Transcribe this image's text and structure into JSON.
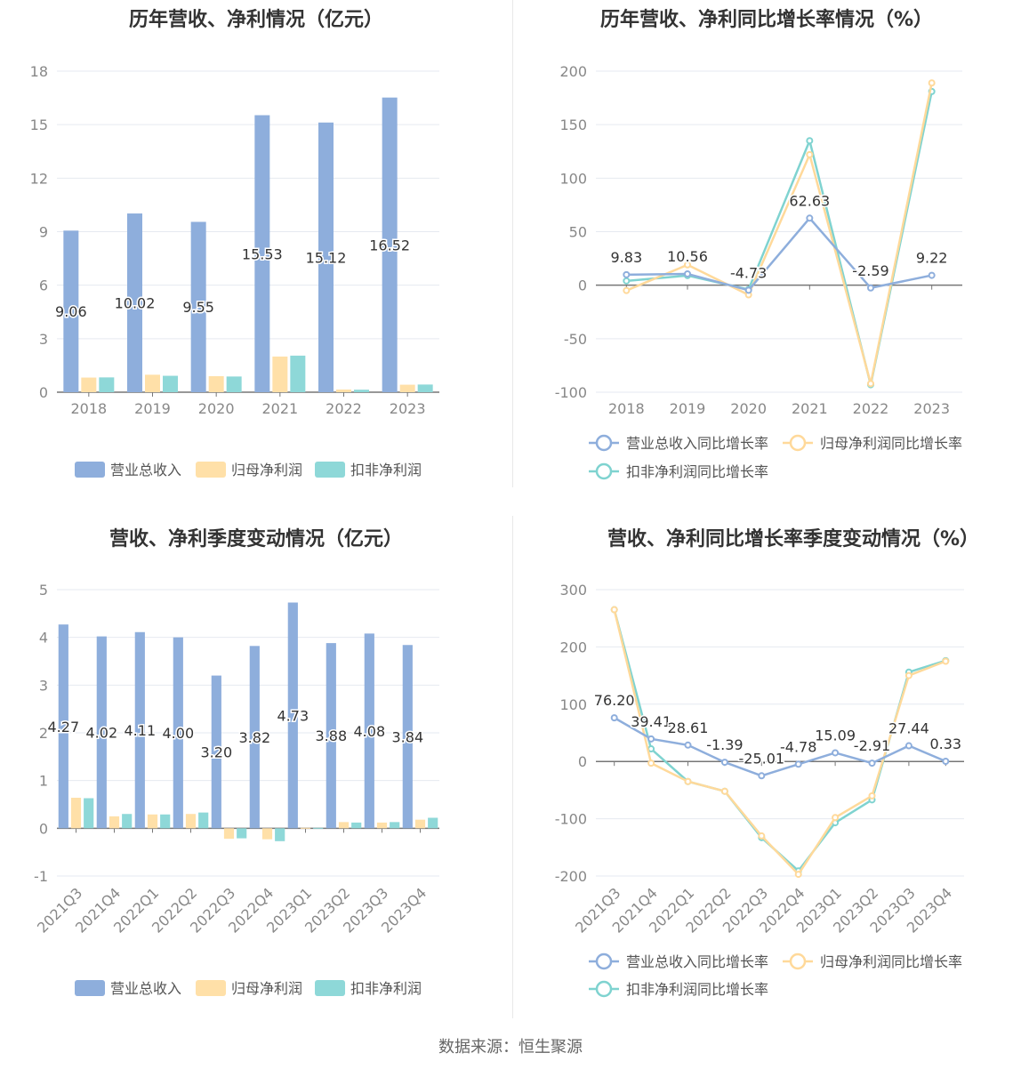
{
  "source_text": "数据来源：恒生聚源",
  "colors": {
    "revenue": "#8eaedc",
    "net_profit": "#ffe0a8",
    "deducted_profit": "#8ed8d8",
    "revenue_line": "#8eaedc",
    "net_profit_line": "#ffd99a",
    "deducted_line": "#7fd3d0"
  },
  "chart_data": [
    {
      "id": "annual_amounts",
      "type": "bar",
      "title": "历年营收、净利情况（亿元）",
      "categories": [
        "2018",
        "2019",
        "2020",
        "2021",
        "2022",
        "2023"
      ],
      "ylim": [
        0,
        18
      ],
      "yticks": [
        0,
        3,
        6,
        9,
        12,
        15,
        18
      ],
      "grid": true,
      "legend_position": "bottom",
      "series": [
        {
          "name": "营业总收入",
          "values": [
            9.06,
            10.02,
            9.55,
            15.53,
            15.12,
            16.52
          ],
          "labels": [
            "9.06",
            "10.02",
            "9.55",
            "15.53",
            "15.12",
            "16.52"
          ]
        },
        {
          "name": "归母净利润",
          "values": [
            0.82,
            0.98,
            0.9,
            2.0,
            0.15,
            0.42
          ]
        },
        {
          "name": "扣非净利润",
          "values": [
            0.83,
            0.92,
            0.88,
            2.05,
            0.14,
            0.43
          ]
        }
      ]
    },
    {
      "id": "annual_growth",
      "type": "line",
      "title": "历年营收、净利同比增长率情况（%）",
      "categories": [
        "2018",
        "2019",
        "2020",
        "2021",
        "2022",
        "2023"
      ],
      "ylim": [
        -100,
        200
      ],
      "yticks": [
        -100,
        -50,
        0,
        50,
        100,
        150,
        200
      ],
      "grid": true,
      "legend_position": "bottom",
      "series": [
        {
          "name": "营业总收入同比增长率",
          "values": [
            9.83,
            10.56,
            -4.73,
            62.63,
            -2.59,
            9.22
          ],
          "labels": [
            "9.83",
            "10.56",
            "-4.73",
            "62.63",
            "-2.59",
            "9.22"
          ]
        },
        {
          "name": "归母净利润同比增长率",
          "values": [
            -5,
            19,
            -9,
            122,
            -92,
            189
          ]
        },
        {
          "name": "扣非净利润同比增长率",
          "values": [
            4,
            9,
            -4,
            135,
            -93,
            181
          ]
        }
      ]
    },
    {
      "id": "quarterly_amounts",
      "type": "bar",
      "title": "营收、净利季度变动情况（亿元）",
      "categories": [
        "2021Q3",
        "2021Q4",
        "2022Q1",
        "2022Q2",
        "2022Q3",
        "2022Q4",
        "2023Q1",
        "2023Q2",
        "2023Q3",
        "2023Q4"
      ],
      "ylim": [
        -1,
        5
      ],
      "yticks": [
        -1,
        0,
        1,
        2,
        3,
        4,
        5
      ],
      "grid": true,
      "legend_position": "bottom",
      "series": [
        {
          "name": "营业总收入",
          "values": [
            4.27,
            4.02,
            4.11,
            4.0,
            3.2,
            3.82,
            4.73,
            3.88,
            4.08,
            3.84
          ],
          "labels": [
            "4.27",
            "4.02",
            "4.11",
            "4.00",
            "3.20",
            "3.82",
            "4.73",
            "3.88",
            "4.08",
            "3.84"
          ]
        },
        {
          "name": "归母净利润",
          "values": [
            0.64,
            0.25,
            0.29,
            0.3,
            -0.22,
            -0.23,
            0.01,
            0.13,
            0.12,
            0.18
          ]
        },
        {
          "name": "扣非净利润",
          "values": [
            0.63,
            0.3,
            0.29,
            0.33,
            -0.21,
            -0.27,
            0.01,
            0.12,
            0.13,
            0.22
          ]
        }
      ]
    },
    {
      "id": "quarterly_growth",
      "type": "line",
      "title": "营收、净利同比增长率季度变动情况（%）",
      "categories": [
        "2021Q3",
        "2021Q4",
        "2022Q1",
        "2022Q2",
        "2022Q3",
        "2022Q4",
        "2023Q1",
        "2023Q2",
        "2023Q3",
        "2023Q4"
      ],
      "ylim": [
        -200,
        300
      ],
      "yticks": [
        -200,
        -100,
        0,
        100,
        200,
        300
      ],
      "grid": true,
      "legend_position": "bottom",
      "series": [
        {
          "name": "营业总收入同比增长率",
          "values": [
            76.2,
            39.41,
            28.61,
            -1.39,
            -25.01,
            -4.78,
            15.09,
            -2.91,
            27.44,
            0.33
          ],
          "labels": [
            "76.20",
            "39.41",
            "28.61",
            "-1.39",
            "-25.01",
            "-4.78",
            "15.09",
            "-2.91",
            "27.44",
            "0.33"
          ]
        },
        {
          "name": "归母净利润同比增长率",
          "values": [
            265,
            -3,
            -35,
            -52,
            -130,
            -197,
            -98,
            -60,
            150,
            175
          ]
        },
        {
          "name": "扣非净利润同比增长率",
          "values": [
            265,
            22,
            -35,
            -52,
            -133,
            -191,
            -107,
            -67,
            156,
            176
          ]
        }
      ]
    }
  ]
}
